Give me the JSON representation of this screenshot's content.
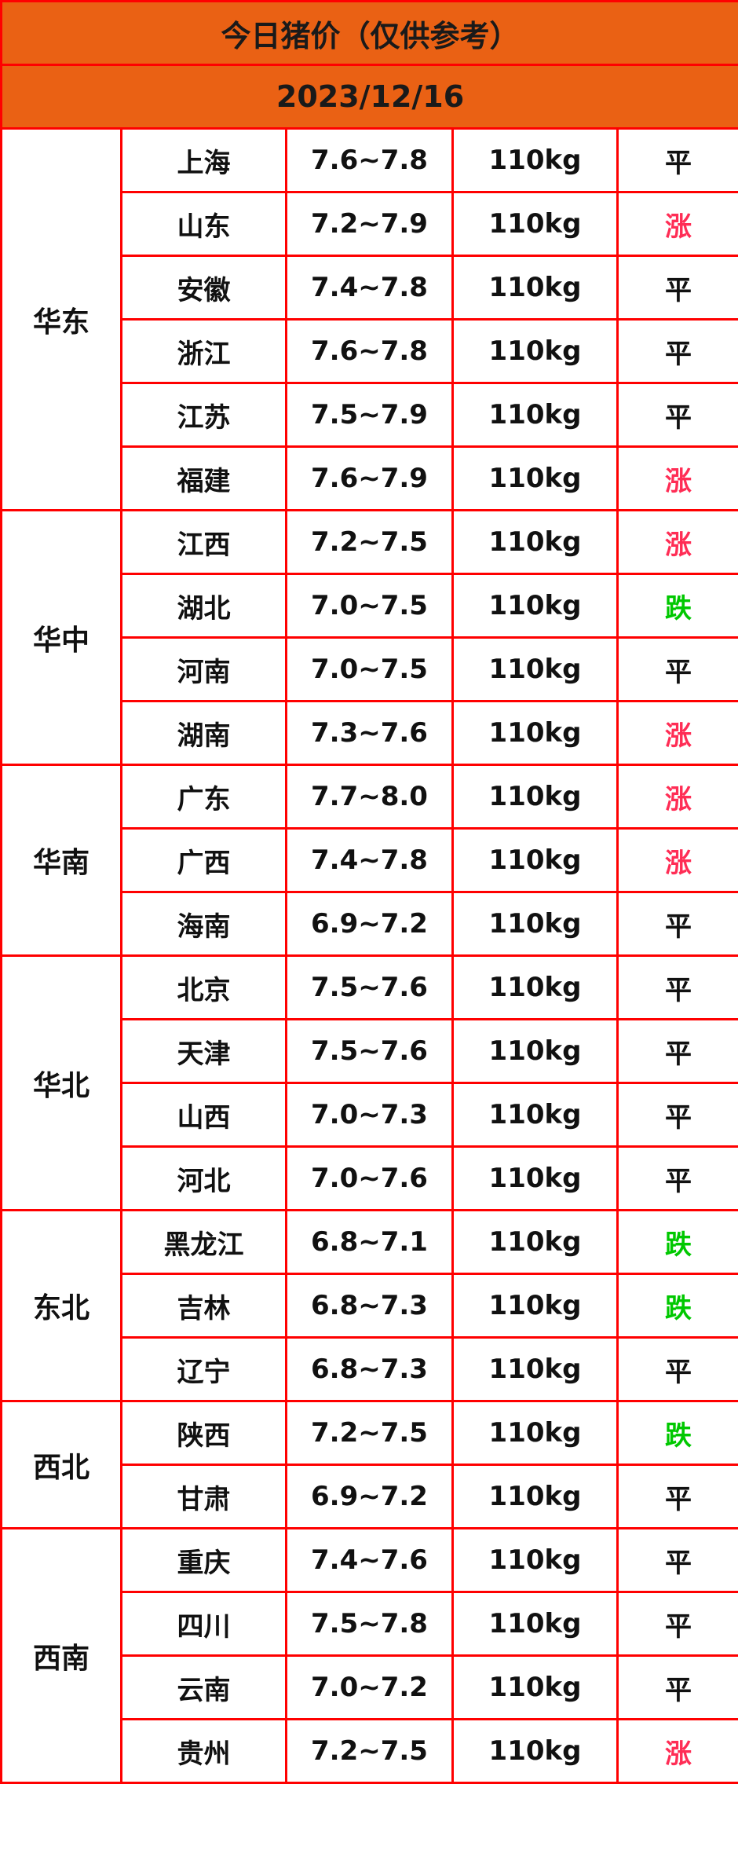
{
  "title": "今日猪价（仅供参考）",
  "date": "2023/12/16",
  "colors": {
    "header_bg": "#ea6114",
    "border": "#ff0000",
    "up": "#ff2d55",
    "down": "#00c800"
  },
  "regions": [
    {
      "name": "华东",
      "rows": [
        {
          "province": "上海",
          "price": "7.6~7.8",
          "weight": "110kg",
          "trend": "平"
        },
        {
          "province": "山东",
          "price": "7.2~7.9",
          "weight": "110kg",
          "trend": "涨"
        },
        {
          "province": "安徽",
          "price": "7.4~7.8",
          "weight": "110kg",
          "trend": "平"
        },
        {
          "province": "浙江",
          "price": "7.6~7.8",
          "weight": "110kg",
          "trend": "平"
        },
        {
          "province": "江苏",
          "price": "7.5~7.9",
          "weight": "110kg",
          "trend": "平"
        },
        {
          "province": "福建",
          "price": "7.6~7.9",
          "weight": "110kg",
          "trend": "涨"
        }
      ]
    },
    {
      "name": "华中",
      "rows": [
        {
          "province": "江西",
          "price": "7.2~7.5",
          "weight": "110kg",
          "trend": "涨"
        },
        {
          "province": "湖北",
          "price": "7.0~7.5",
          "weight": "110kg",
          "trend": "跌"
        },
        {
          "province": "河南",
          "price": "7.0~7.5",
          "weight": "110kg",
          "trend": "平"
        },
        {
          "province": "湖南",
          "price": "7.3~7.6",
          "weight": "110kg",
          "trend": "涨"
        }
      ]
    },
    {
      "name": "华南",
      "rows": [
        {
          "province": "广东",
          "price": "7.7~8.0",
          "weight": "110kg",
          "trend": "涨"
        },
        {
          "province": "广西",
          "price": "7.4~7.8",
          "weight": "110kg",
          "trend": "涨"
        },
        {
          "province": "海南",
          "price": "6.9~7.2",
          "weight": "110kg",
          "trend": "平"
        }
      ]
    },
    {
      "name": "华北",
      "rows": [
        {
          "province": "北京",
          "price": "7.5~7.6",
          "weight": "110kg",
          "trend": "平"
        },
        {
          "province": "天津",
          "price": "7.5~7.6",
          "weight": "110kg",
          "trend": "平"
        },
        {
          "province": "山西",
          "price": "7.0~7.3",
          "weight": "110kg",
          "trend": "平"
        },
        {
          "province": "河北",
          "price": "7.0~7.6",
          "weight": "110kg",
          "trend": "平"
        }
      ]
    },
    {
      "name": "东北",
      "rows": [
        {
          "province": "黑龙江",
          "price": "6.8~7.1",
          "weight": "110kg",
          "trend": "跌"
        },
        {
          "province": "吉林",
          "price": "6.8~7.3",
          "weight": "110kg",
          "trend": "跌"
        },
        {
          "province": "辽宁",
          "price": "6.8~7.3",
          "weight": "110kg",
          "trend": "平"
        }
      ]
    },
    {
      "name": "西北",
      "rows": [
        {
          "province": "陕西",
          "price": "7.2~7.5",
          "weight": "110kg",
          "trend": "跌"
        },
        {
          "province": "甘肃",
          "price": "6.9~7.2",
          "weight": "110kg",
          "trend": "平"
        }
      ]
    },
    {
      "name": "西南",
      "rows": [
        {
          "province": "重庆",
          "price": "7.4~7.6",
          "weight": "110kg",
          "trend": "平"
        },
        {
          "province": "四川",
          "price": "7.5~7.8",
          "weight": "110kg",
          "trend": "平"
        },
        {
          "province": "云南",
          "price": "7.0~7.2",
          "weight": "110kg",
          "trend": "平"
        },
        {
          "province": "贵州",
          "price": "7.2~7.5",
          "weight": "110kg",
          "trend": "涨"
        }
      ]
    }
  ]
}
